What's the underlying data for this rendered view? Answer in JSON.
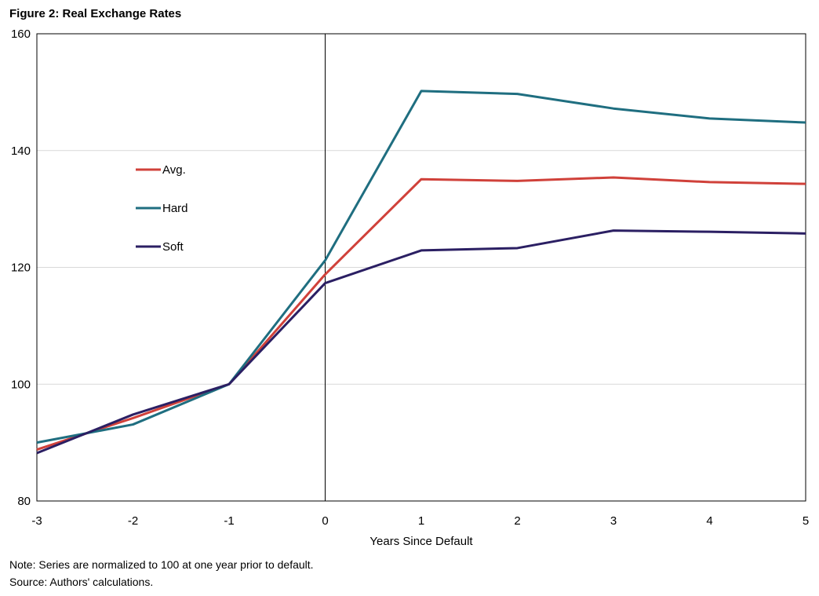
{
  "figure_title": "Figure 2: Real Exchange Rates",
  "notes": {
    "note": "Note: Series are normalized to 100 at one year prior to default.",
    "source": "Source: Authors' calculations."
  },
  "chart_data": {
    "type": "line",
    "title": "Figure 2: Real Exchange Rates",
    "xlabel": "Years Since Default",
    "ylabel": "",
    "x": [
      -3,
      -2,
      -1,
      0,
      1,
      2,
      3,
      4,
      5
    ],
    "xlim": [
      -3,
      5
    ],
    "ylim": [
      80,
      160
    ],
    "yticks": [
      80,
      100,
      120,
      140,
      160
    ],
    "xticks": [
      -3,
      -2,
      -1,
      0,
      1,
      2,
      3,
      4,
      5
    ],
    "grid": "horizontal",
    "reference_line_x": 0,
    "legend_position": "left",
    "series": [
      {
        "name": "Avg.",
        "color": "#d0413a",
        "values": [
          88.8,
          94.2,
          100,
          118.8,
          135.1,
          134.8,
          135.4,
          134.6,
          134.3
        ]
      },
      {
        "name": "Hard",
        "color": "#1f6e80",
        "values": [
          90.0,
          93.1,
          100,
          121.2,
          150.2,
          149.7,
          147.2,
          145.5,
          144.8
        ]
      },
      {
        "name": "Soft",
        "color": "#2b1f63",
        "values": [
          88.2,
          94.8,
          100,
          117.3,
          122.9,
          123.3,
          126.3,
          126.1,
          125.8
        ]
      }
    ]
  }
}
